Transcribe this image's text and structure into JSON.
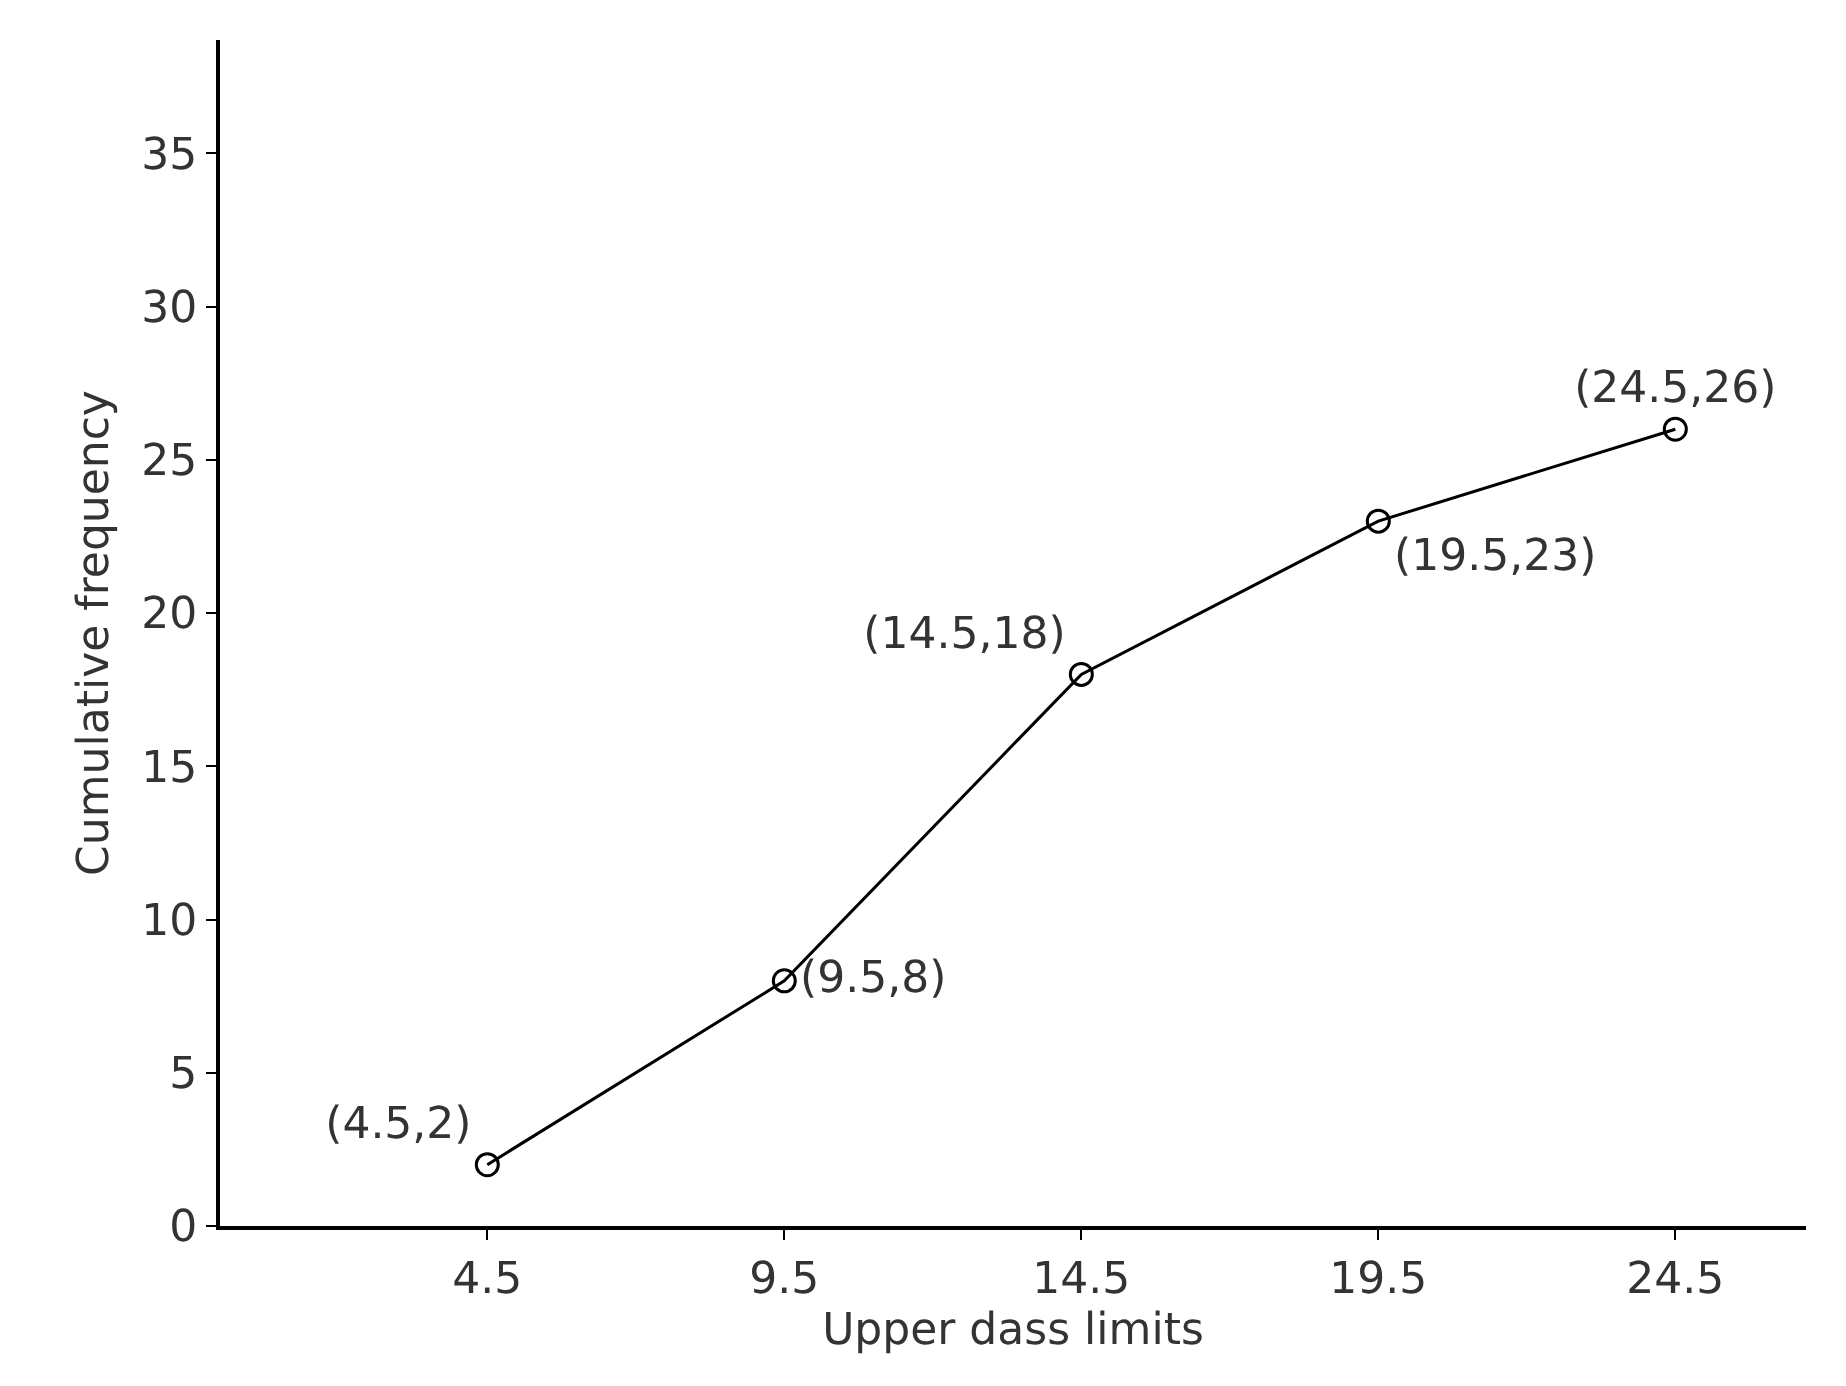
{
  "chart_data": {
    "type": "line",
    "xlabel": "Upper dass limits",
    "ylabel": "Cumulative frequency",
    "x": [
      4.5,
      9.5,
      14.5,
      19.5,
      24.5
    ],
    "series": [
      {
        "color": "#000000",
        "values": [
          2,
          8,
          18,
          23,
          26
        ]
      }
    ],
    "value_labels": [
      "(4.5,2)",
      "(9.5,8)",
      "(14.5,18)",
      "(19.5,23)",
      "(24.5,26)"
    ],
    "xlim": [
      0,
      26.7
    ],
    "ylim": [
      0,
      38.7
    ],
    "xticks": [
      4.5,
      9.5,
      14.5,
      19.5,
      24.5
    ],
    "yticks": [
      0,
      5,
      10,
      15,
      20,
      25,
      30,
      35
    ],
    "legend": false,
    "marker": "circle",
    "line_style": "solid"
  }
}
